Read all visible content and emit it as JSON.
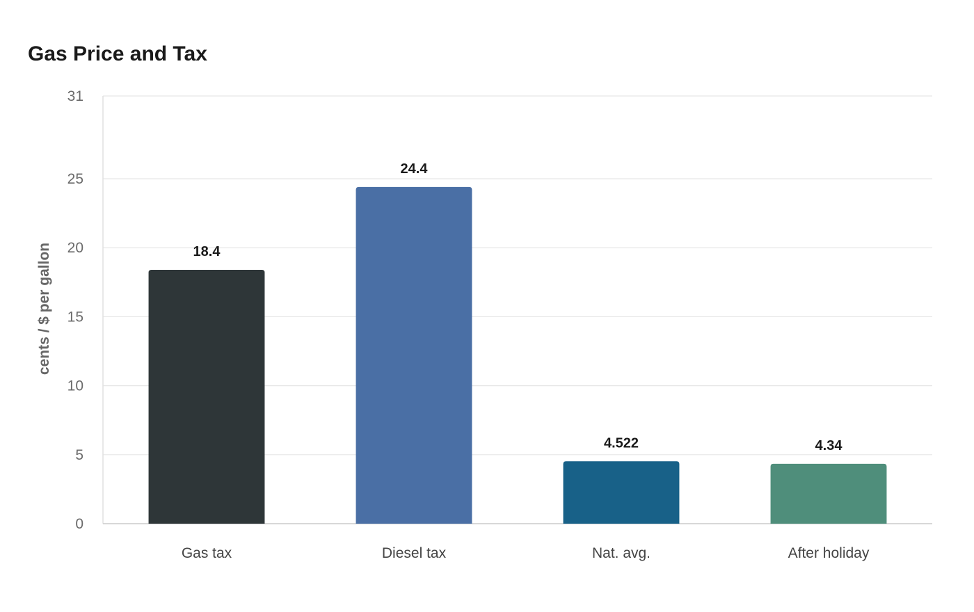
{
  "chart_data": {
    "type": "bar",
    "title": "Gas Price and Tax",
    "xlabel": "",
    "ylabel": "cents / $ per gallon",
    "categories": [
      "Gas tax",
      "Diesel tax",
      "Nat. avg.",
      "After holiday"
    ],
    "values": [
      18.4,
      24.4,
      4.522,
      4.34
    ],
    "value_labels": [
      "18.4",
      "24.4",
      "4.522",
      "4.34"
    ],
    "colors": [
      "#2e3638",
      "#4a6fa5",
      "#186188",
      "#4f8e7b"
    ],
    "ylim": [
      0,
      31
    ],
    "yticks": [
      0,
      5,
      10,
      15,
      20,
      25,
      31
    ],
    "grid": true,
    "legend": "none"
  }
}
